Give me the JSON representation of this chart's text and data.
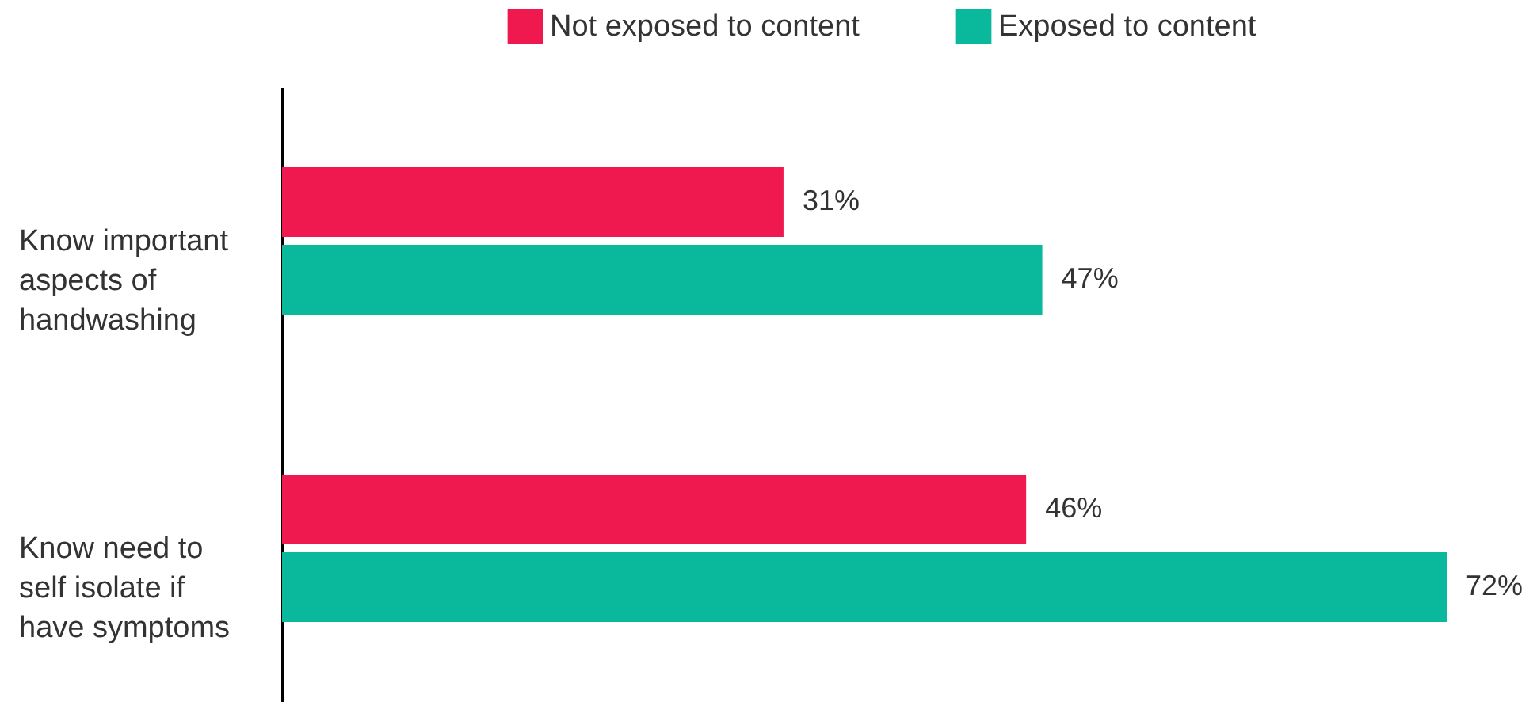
{
  "chart_data": {
    "type": "bar",
    "orientation": "horizontal",
    "categories": [
      "Know important aspects of handwashing",
      "Know need to self isolate if have symptoms"
    ],
    "series": [
      {
        "name": "Not exposed to content",
        "color": "#f0194f",
        "values": [
          31,
          46
        ],
        "value_labels": [
          "31%",
          "46%"
        ]
      },
      {
        "name": "Exposed to content",
        "color": "#0ab89c",
        "values": [
          47,
          72
        ],
        "value_labels": [
          "47%",
          "72%"
        ]
      }
    ],
    "legend": "top"
  }
}
